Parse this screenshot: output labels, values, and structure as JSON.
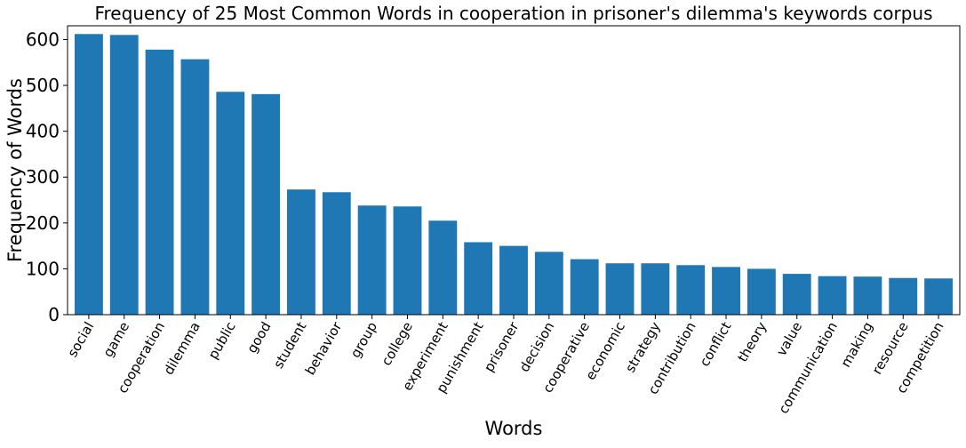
{
  "chart_data": {
    "type": "bar",
    "title": "Frequency of 25 Most Common Words in cooperation in prisoner's dilemma's keywords corpus",
    "xlabel": "Words",
    "ylabel": "Frequency of Words",
    "categories": [
      "social",
      "game",
      "cooperation",
      "dilemma",
      "public",
      "good",
      "student",
      "behavior",
      "group",
      "college",
      "experiment",
      "punishment",
      "prisoner",
      "decision",
      "cooperative",
      "economic",
      "strategy",
      "contribution",
      "conflict",
      "theory",
      "value",
      "communication",
      "making",
      "resource",
      "competition"
    ],
    "values": [
      612,
      610,
      578,
      557,
      486,
      481,
      273,
      267,
      238,
      236,
      205,
      158,
      150,
      137,
      121,
      112,
      112,
      108,
      104,
      100,
      89,
      84,
      83,
      80,
      79
    ],
    "ylim": [
      0,
      630
    ],
    "yticks": [
      "0",
      "100",
      "200",
      "300",
      "400",
      "500",
      "600"
    ],
    "bar_color": "#1f77b4",
    "grid": false,
    "legend": "none"
  }
}
